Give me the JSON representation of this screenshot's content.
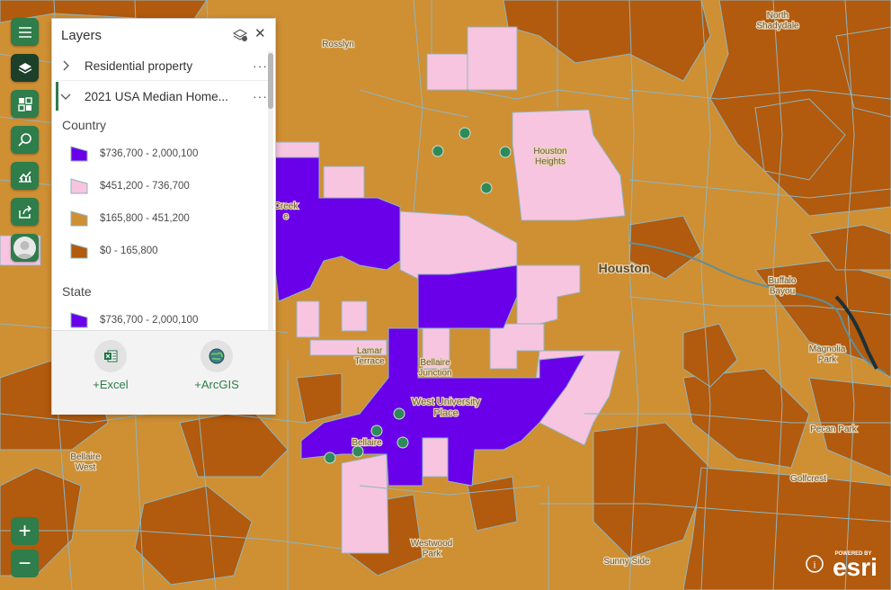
{
  "map": {
    "labels": [
      {
        "text": "Rosslyn"
      },
      {
        "text": "North\nShadydale"
      },
      {
        "text": "Houston\nHeights"
      },
      {
        "text": "Houston"
      },
      {
        "text": "Buffalo\nBayou"
      },
      {
        "text": "Magnolia\nPark"
      },
      {
        "text": "Pecan Park"
      },
      {
        "text": "Golfcrest"
      },
      {
        "text": "Lamar\nTerrace"
      },
      {
        "text": "Bellaire\nJunction"
      },
      {
        "text": "West University\nPlace"
      },
      {
        "text": "Bellaire"
      },
      {
        "text": "Bellaire\nWest"
      },
      {
        "text": "Westwood\nPark"
      },
      {
        "text": "Sunny Side"
      },
      {
        "text": "Creek\ne"
      }
    ],
    "colors": {
      "tier1": "#6a00ea",
      "tier2": "#f7c5e0",
      "tier3": "#cf8f33",
      "tier4": "#b25a0d",
      "boundary": "#8fb5bf",
      "point": "#2f8a5a"
    }
  },
  "toolbar": {
    "items": [
      {
        "icon": "menu-icon"
      },
      {
        "icon": "layers-icon"
      },
      {
        "icon": "basemap-gallery-icon"
      },
      {
        "icon": "search-icon"
      },
      {
        "icon": "analysis-chart-icon"
      },
      {
        "icon": "share-icon"
      },
      {
        "icon": "user-avatar-icon"
      }
    ],
    "zoom_in": "+",
    "zoom_out": "−"
  },
  "layers_panel": {
    "title": "Layers",
    "close": "✕",
    "more": "···",
    "layers": [
      {
        "name": "Residential property",
        "expanded": false
      },
      {
        "name": "2021 USA Median Home...",
        "expanded": true
      }
    ],
    "legend_groups": [
      {
        "title": "Country",
        "items": [
          {
            "label": "$736,700 - 2,000,100",
            "color": "#6a00ea"
          },
          {
            "label": "$451,200 - 736,700",
            "color": "#f7c5e0"
          },
          {
            "label": "$165,800 - 451,200",
            "color": "#cf8f33"
          },
          {
            "label": "$0 - 165,800",
            "color": "#b25a0d"
          }
        ]
      },
      {
        "title": "State",
        "items": [
          {
            "label": "$736,700 - 2,000,100",
            "color": "#6a00ea"
          }
        ]
      }
    ],
    "footer": {
      "excel_label": "Excel",
      "arcgis_label": "ArcGIS",
      "plus": "+"
    }
  },
  "attribution": {
    "powered_by": "POWERED BY",
    "brand": "esri",
    "info": "i"
  }
}
